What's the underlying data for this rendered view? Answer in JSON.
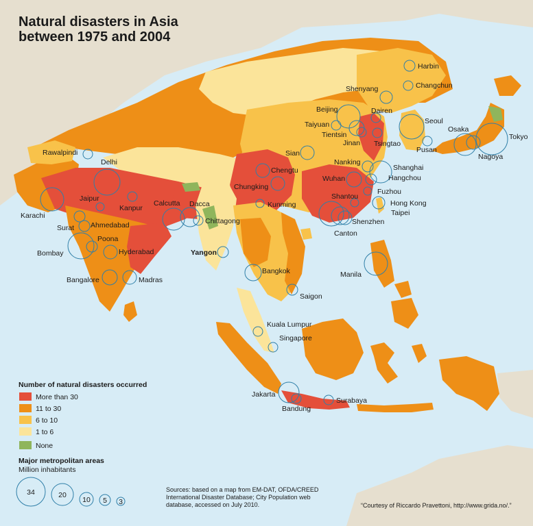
{
  "title": [
    "Natural disasters in Asia",
    "between 1975 and 2004"
  ],
  "colors": {
    "sea": "#d7ecf6",
    "other_land": "#e6dfcf",
    "more_than_30": "#e44f3a",
    "c11_30": "#ee8f17",
    "c6_10": "#f8c24a",
    "c1_6": "#fbe49a",
    "none": "#8fb55c",
    "bubble": "#2f7fa8"
  },
  "legend": {
    "heading": "Number of natural disasters occurred",
    "items": [
      {
        "label": "More than 30",
        "color_key": "more_than_30"
      },
      {
        "label": "11 to 30",
        "color_key": "c11_30"
      },
      {
        "label": "6 to 10",
        "color_key": "c6_10"
      },
      {
        "label": "1 to 6",
        "color_key": "c1_6"
      },
      {
        "label": "None",
        "color_key": "none"
      }
    ],
    "metro_heading": "Major metropolitan areas",
    "metro_sub": "Million inhabitants",
    "metro_sizes": [
      "34",
      "20",
      "10",
      "5",
      "3"
    ]
  },
  "cities": [
    {
      "name": "Harbin",
      "bold": false
    },
    {
      "name": "Changchun",
      "bold": false
    },
    {
      "name": "Shenyang",
      "bold": false
    },
    {
      "name": "Beijing",
      "bold": false
    },
    {
      "name": "Dairen",
      "bold": false
    },
    {
      "name": "Taiyuan",
      "bold": false
    },
    {
      "name": "Tientsin",
      "bold": false
    },
    {
      "name": "Jinan",
      "bold": false
    },
    {
      "name": "Tsingtao",
      "bold": false
    },
    {
      "name": "Seoul",
      "bold": false
    },
    {
      "name": "Pusan",
      "bold": false
    },
    {
      "name": "Osaka",
      "bold": false
    },
    {
      "name": "Tokyo",
      "bold": false
    },
    {
      "name": "Nagoya",
      "bold": false
    },
    {
      "name": "Sian",
      "bold": false
    },
    {
      "name": "Nanking",
      "bold": false
    },
    {
      "name": "Shanghai",
      "bold": false
    },
    {
      "name": "Hangchou",
      "bold": false
    },
    {
      "name": "Wuhan",
      "bold": false
    },
    {
      "name": "Fuzhou",
      "bold": false
    },
    {
      "name": "Chengtu",
      "bold": false
    },
    {
      "name": "Chungking",
      "bold": false
    },
    {
      "name": "Kunming",
      "bold": false
    },
    {
      "name": "Shantou",
      "bold": false
    },
    {
      "name": "Hong Kong",
      "bold": false
    },
    {
      "name": "Taipei",
      "bold": false
    },
    {
      "name": "Shenzhen",
      "bold": false
    },
    {
      "name": "Canton",
      "bold": false
    },
    {
      "name": "Rawalpindi",
      "bold": false
    },
    {
      "name": "Delhi",
      "bold": false
    },
    {
      "name": "Jaipur",
      "bold": false
    },
    {
      "name": "Kanpur",
      "bold": false
    },
    {
      "name": "Calcutta",
      "bold": false
    },
    {
      "name": "Dacca",
      "bold": false
    },
    {
      "name": "Chittagong",
      "bold": false
    },
    {
      "name": "Karachi",
      "bold": false
    },
    {
      "name": "Surat",
      "bold": false
    },
    {
      "name": "Ahmedabad",
      "bold": false
    },
    {
      "name": "Poona",
      "bold": false
    },
    {
      "name": "Bombay",
      "bold": false
    },
    {
      "name": "Hyderabad",
      "bold": false
    },
    {
      "name": "Bangalore",
      "bold": false
    },
    {
      "name": "Madras",
      "bold": false
    },
    {
      "name": "Yangon",
      "bold": true
    },
    {
      "name": "Bangkok",
      "bold": false
    },
    {
      "name": "Saigon",
      "bold": false
    },
    {
      "name": "Manila",
      "bold": false
    },
    {
      "name": "Kuala Lumpur",
      "bold": false
    },
    {
      "name": "Singapore",
      "bold": false
    },
    {
      "name": "Jakarta",
      "bold": false
    },
    {
      "name": "Bandung",
      "bold": false
    },
    {
      "name": "Surabaya",
      "bold": false
    }
  ],
  "sources": [
    "Sources: based on a map from EM-DAT, OFDA/CREED",
    "International Disaster Database; City Population web",
    "database, accessed on July 2010."
  ],
  "credit": "“Courtesy of Riccardo Pravettoni, http://www.grida.no/.”"
}
